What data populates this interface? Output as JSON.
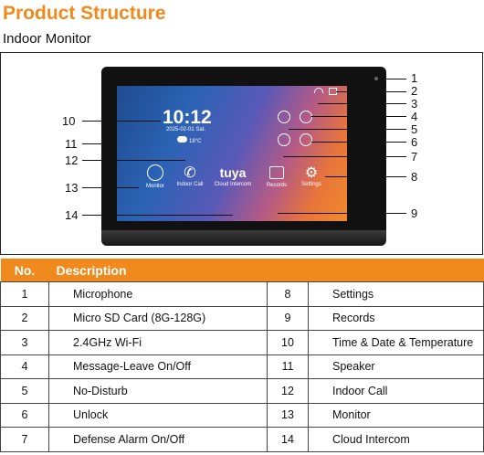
{
  "title": "Product Structure",
  "subtitle": "Indoor Monitor",
  "screen": {
    "time": "10:12",
    "date": "2025-02-01  Sat.",
    "temperature": "18°C",
    "apps": [
      "Monitor",
      "Indoor Call",
      "Cloud Intercom",
      "Records",
      "Settings"
    ],
    "brand": "tuya"
  },
  "callouts": [
    "1",
    "2",
    "3",
    "4",
    "5",
    "6",
    "7",
    "8",
    "9",
    "10",
    "11",
    "12",
    "13",
    "14"
  ],
  "table": {
    "headers": [
      "No.",
      "Description"
    ],
    "left": [
      {
        "no": "1",
        "desc": "Microphone"
      },
      {
        "no": "2",
        "desc": "Micro SD Card (8G-128G)"
      },
      {
        "no": "3",
        "desc": "2.4GHz Wi-Fi"
      },
      {
        "no": "4",
        "desc": "Message-Leave On/Off"
      },
      {
        "no": "5",
        "desc": "No-Disturb"
      },
      {
        "no": "6",
        "desc": "Unlock"
      },
      {
        "no": "7",
        "desc": "Defense Alarm On/Off"
      }
    ],
    "right": [
      {
        "no": "8",
        "desc": "Settings"
      },
      {
        "no": "9",
        "desc": "Records"
      },
      {
        "no": "10",
        "desc": "Time & Date & Temperature"
      },
      {
        "no": "11",
        "desc": "Speaker"
      },
      {
        "no": "12",
        "desc": "Indoor Call"
      },
      {
        "no": "13",
        "desc": "Monitor"
      },
      {
        "no": "14",
        "desc": "Cloud Intercom"
      }
    ]
  }
}
